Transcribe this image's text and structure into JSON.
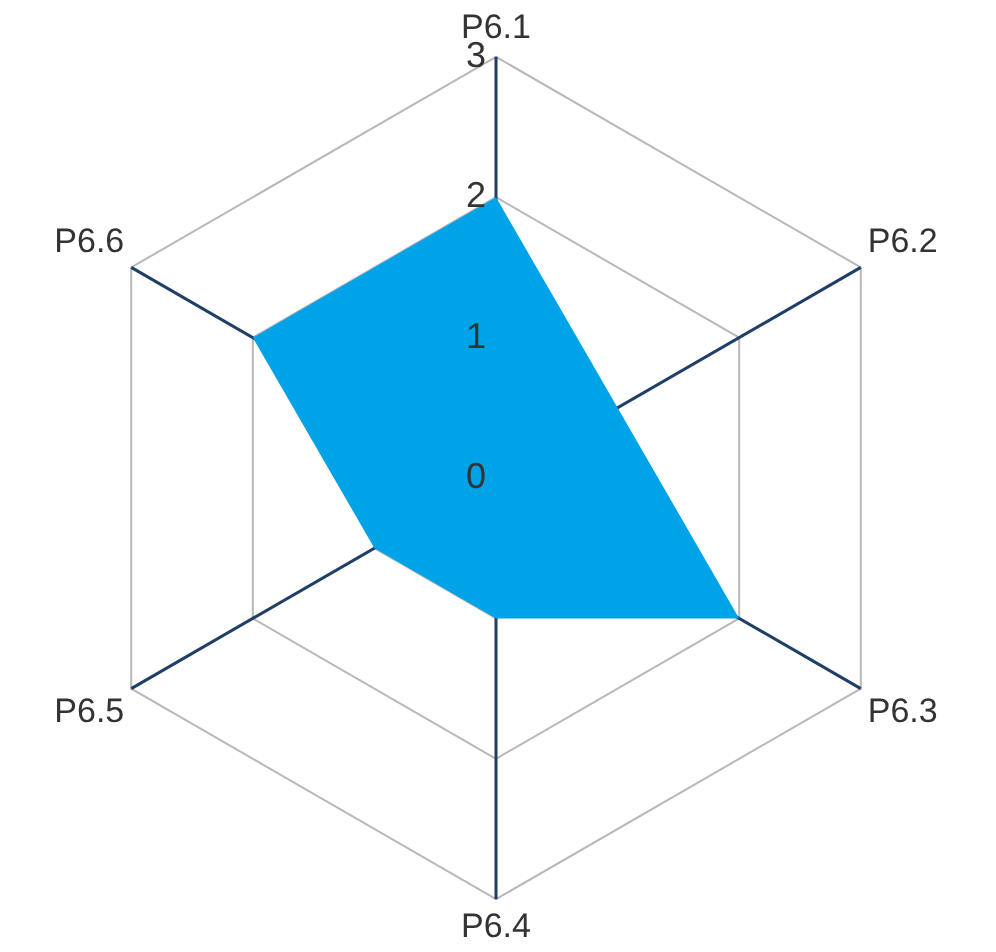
{
  "chart_data": {
    "type": "radar",
    "categories": [
      "P6.1",
      "P6.2",
      "P6.3",
      "P6.4",
      "P6.5",
      "P6.6"
    ],
    "series": [
      {
        "color": "#00a2e8",
        "values": [
          2,
          1,
          2,
          1,
          1,
          2
        ]
      }
    ],
    "ylim": [
      0,
      3
    ],
    "yticks": [
      0,
      1,
      2,
      3
    ],
    "grid": true,
    "marker": "none"
  }
}
